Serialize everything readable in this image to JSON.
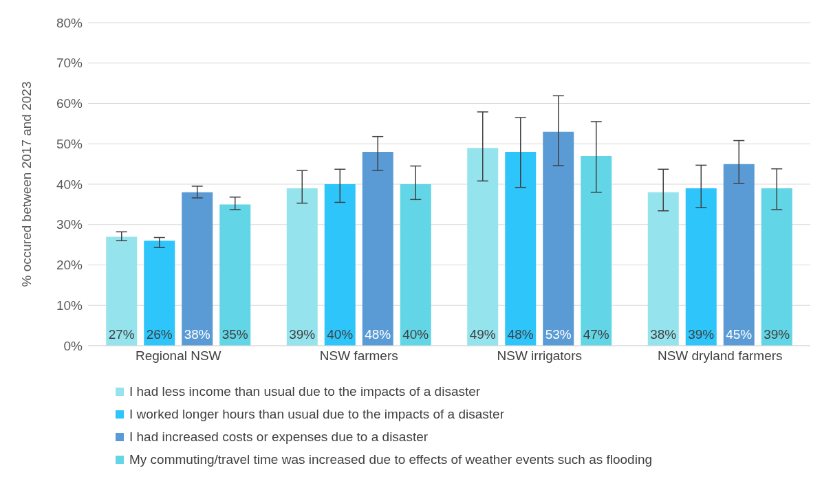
{
  "chart_data": {
    "type": "bar",
    "ylabel": "% occured between 2017 and 2023",
    "categories": [
      "Regional NSW",
      "NSW farmers",
      "NSW irrigators",
      "NSW dryland farmers"
    ],
    "series": [
      {
        "name": "I had less income than usual due to the impacts of a disaster",
        "color": "#95e3ed",
        "values": [
          27,
          39,
          49,
          38
        ],
        "value_labels": [
          "27%",
          "39%",
          "49%",
          "38%"
        ],
        "errors": [
          [
            26,
            28.2
          ],
          [
            35.3,
            43.4
          ],
          [
            40.8,
            57.9
          ],
          [
            33.4,
            43.7
          ]
        ]
      },
      {
        "name": "I worked longer hours than usual due to the impacts of a disaster",
        "color": "#2ec5fb",
        "values": [
          26,
          40,
          48,
          39
        ],
        "value_labels": [
          "26%",
          "40%",
          "48%",
          "39%"
        ],
        "errors": [
          [
            24.3,
            26.8
          ],
          [
            35.5,
            43.7
          ],
          [
            39.2,
            56.5
          ],
          [
            34.2,
            44.7
          ]
        ]
      },
      {
        "name": "I had increased costs or expenses due to a disaster",
        "color": "#5b9bd5",
        "values": [
          38,
          48,
          53,
          45
        ],
        "value_labels": [
          "38%",
          "48%",
          "53%",
          "45%"
        ],
        "errors": [
          [
            36.6,
            39.5
          ],
          [
            43.4,
            51.8
          ],
          [
            44.6,
            61.9
          ],
          [
            40.2,
            50.8
          ]
        ]
      },
      {
        "name": "My commuting/travel time was increased due to effects of weather events such as flooding",
        "color": "#62d6e6",
        "values": [
          35,
          40,
          47,
          39
        ],
        "value_labels": [
          "35%",
          "40%",
          "47%",
          "39%"
        ],
        "errors": [
          [
            33.7,
            36.8
          ],
          [
            36.2,
            44.5
          ],
          [
            38,
            55.5
          ],
          [
            33.7,
            43.8
          ]
        ]
      }
    ],
    "ylim": [
      0,
      80
    ],
    "yticks": [
      {
        "value": 0,
        "label": "0%"
      },
      {
        "value": 10,
        "label": "10%"
      },
      {
        "value": 20,
        "label": "20%"
      },
      {
        "value": 30,
        "label": "30%"
      },
      {
        "value": 40,
        "label": "40%"
      },
      {
        "value": 50,
        "label": "50%"
      },
      {
        "value": 60,
        "label": "60%"
      },
      {
        "value": 70,
        "label": "70%"
      },
      {
        "value": 80,
        "label": "80%"
      }
    ],
    "grid": "y",
    "legend": "bottom"
  }
}
